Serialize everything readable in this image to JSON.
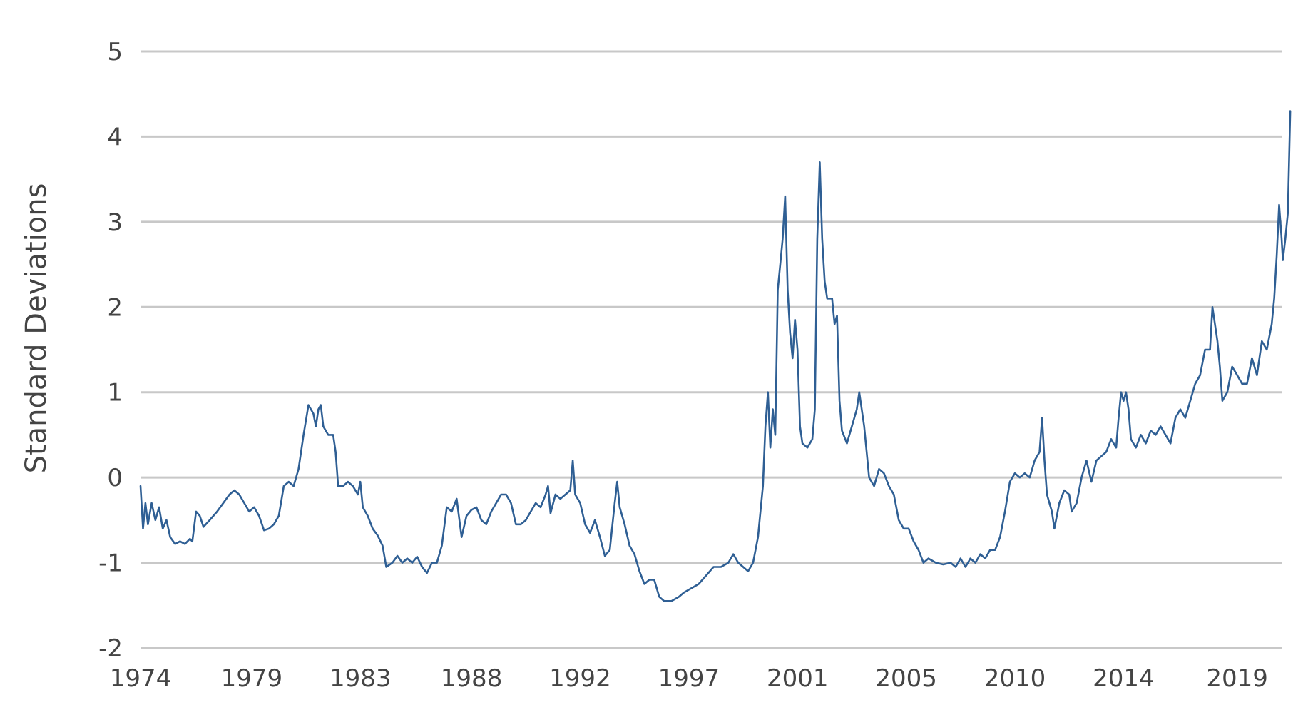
{
  "chart_data": {
    "type": "line",
    "title": "",
    "xlabel": "",
    "ylabel": "Standard Deviations",
    "ylim": [
      -2,
      5
    ],
    "xlim": [
      1974.0,
      2020.2
    ],
    "y_ticks": [
      5,
      4,
      3,
      2,
      1,
      0,
      -1,
      -2
    ],
    "x_ticks": [
      {
        "label": "1974",
        "x": 1974.0
      },
      {
        "label": "1979",
        "x": 1978.5
      },
      {
        "label": "1983",
        "x": 1982.9
      },
      {
        "label": "1988",
        "x": 1987.4
      },
      {
        "label": "1992",
        "x": 1991.8
      },
      {
        "label": "1997",
        "x": 1996.2
      },
      {
        "label": "2001",
        "x": 2000.6
      },
      {
        "label": "2005",
        "x": 2005.0
      },
      {
        "label": "2010",
        "x": 2009.4
      },
      {
        "label": "2014",
        "x": 2013.8
      },
      {
        "label": "2019",
        "x": 2018.4
      }
    ],
    "grid": true,
    "legend": "none",
    "colors": {
      "line": "#2f5f94",
      "grid": "#c8c8c8",
      "text": "#444444"
    },
    "series": [
      {
        "points": [
          [
            1974.0,
            -0.1
          ],
          [
            1974.1,
            -0.6
          ],
          [
            1974.2,
            -0.3
          ],
          [
            1974.3,
            -0.55
          ],
          [
            1974.45,
            -0.3
          ],
          [
            1974.6,
            -0.5
          ],
          [
            1974.75,
            -0.35
          ],
          [
            1974.9,
            -0.6
          ],
          [
            1975.05,
            -0.5
          ],
          [
            1975.2,
            -0.7
          ],
          [
            1975.4,
            -0.78
          ],
          [
            1975.6,
            -0.75
          ],
          [
            1975.8,
            -0.78
          ],
          [
            1976.0,
            -0.72
          ],
          [
            1976.1,
            -0.75
          ],
          [
            1976.25,
            -0.4
          ],
          [
            1976.4,
            -0.45
          ],
          [
            1976.55,
            -0.58
          ],
          [
            1976.8,
            -0.5
          ],
          [
            1977.1,
            -0.4
          ],
          [
            1977.4,
            -0.28
          ],
          [
            1977.6,
            -0.2
          ],
          [
            1977.8,
            -0.15
          ],
          [
            1978.0,
            -0.2
          ],
          [
            1978.2,
            -0.3
          ],
          [
            1978.4,
            -0.4
          ],
          [
            1978.6,
            -0.35
          ],
          [
            1978.8,
            -0.45
          ],
          [
            1979.0,
            -0.62
          ],
          [
            1979.2,
            -0.6
          ],
          [
            1979.4,
            -0.55
          ],
          [
            1979.6,
            -0.45
          ],
          [
            1979.8,
            -0.1
          ],
          [
            1980.0,
            -0.05
          ],
          [
            1980.2,
            -0.1
          ],
          [
            1980.4,
            0.1
          ],
          [
            1980.6,
            0.5
          ],
          [
            1980.8,
            0.85
          ],
          [
            1981.0,
            0.75
          ],
          [
            1981.1,
            0.6
          ],
          [
            1981.2,
            0.8
          ],
          [
            1981.3,
            0.85
          ],
          [
            1981.4,
            0.6
          ],
          [
            1981.6,
            0.5
          ],
          [
            1981.8,
            0.5
          ],
          [
            1981.9,
            0.3
          ],
          [
            1982.0,
            -0.1
          ],
          [
            1982.2,
            -0.1
          ],
          [
            1982.4,
            -0.05
          ],
          [
            1982.6,
            -0.1
          ],
          [
            1982.8,
            -0.2
          ],
          [
            1982.9,
            -0.05
          ],
          [
            1983.0,
            -0.35
          ],
          [
            1983.2,
            -0.45
          ],
          [
            1983.4,
            -0.6
          ],
          [
            1983.6,
            -0.68
          ],
          [
            1983.8,
            -0.8
          ],
          [
            1983.95,
            -1.05
          ],
          [
            1984.2,
            -1.0
          ],
          [
            1984.4,
            -0.92
          ],
          [
            1984.6,
            -1.0
          ],
          [
            1984.8,
            -0.95
          ],
          [
            1985.0,
            -1.0
          ],
          [
            1985.2,
            -0.93
          ],
          [
            1985.4,
            -1.05
          ],
          [
            1985.6,
            -1.12
          ],
          [
            1985.8,
            -1.0
          ],
          [
            1986.0,
            -1.0
          ],
          [
            1986.2,
            -0.8
          ],
          [
            1986.4,
            -0.35
          ],
          [
            1986.6,
            -0.4
          ],
          [
            1986.8,
            -0.25
          ],
          [
            1987.0,
            -0.7
          ],
          [
            1987.2,
            -0.45
          ],
          [
            1987.4,
            -0.38
          ],
          [
            1987.6,
            -0.35
          ],
          [
            1987.8,
            -0.5
          ],
          [
            1988.0,
            -0.55
          ],
          [
            1988.2,
            -0.4
          ],
          [
            1988.4,
            -0.3
          ],
          [
            1988.6,
            -0.2
          ],
          [
            1988.8,
            -0.2
          ],
          [
            1989.0,
            -0.3
          ],
          [
            1989.2,
            -0.55
          ],
          [
            1989.4,
            -0.55
          ],
          [
            1989.6,
            -0.5
          ],
          [
            1989.8,
            -0.4
          ],
          [
            1990.0,
            -0.3
          ],
          [
            1990.2,
            -0.35
          ],
          [
            1990.4,
            -0.2
          ],
          [
            1990.5,
            -0.1
          ],
          [
            1990.6,
            -0.42
          ],
          [
            1990.8,
            -0.2
          ],
          [
            1991.0,
            -0.25
          ],
          [
            1991.2,
            -0.2
          ],
          [
            1991.4,
            -0.15
          ],
          [
            1991.5,
            0.2
          ],
          [
            1991.6,
            -0.2
          ],
          [
            1991.8,
            -0.3
          ],
          [
            1992.0,
            -0.55
          ],
          [
            1992.2,
            -0.65
          ],
          [
            1992.4,
            -0.5
          ],
          [
            1992.6,
            -0.7
          ],
          [
            1992.8,
            -0.92
          ],
          [
            1993.0,
            -0.85
          ],
          [
            1993.2,
            -0.3
          ],
          [
            1993.3,
            -0.05
          ],
          [
            1993.4,
            -0.35
          ],
          [
            1993.6,
            -0.55
          ],
          [
            1993.8,
            -0.8
          ],
          [
            1994.0,
            -0.9
          ],
          [
            1994.2,
            -1.1
          ],
          [
            1994.4,
            -1.25
          ],
          [
            1994.6,
            -1.2
          ],
          [
            1994.8,
            -1.2
          ],
          [
            1995.0,
            -1.4
          ],
          [
            1995.2,
            -1.45
          ],
          [
            1995.5,
            -1.45
          ],
          [
            1995.8,
            -1.4
          ],
          [
            1996.0,
            -1.35
          ],
          [
            1996.3,
            -1.3
          ],
          [
            1996.6,
            -1.25
          ],
          [
            1996.9,
            -1.15
          ],
          [
            1997.2,
            -1.05
          ],
          [
            1997.5,
            -1.05
          ],
          [
            1997.8,
            -1.0
          ],
          [
            1998.0,
            -0.9
          ],
          [
            1998.2,
            -1.0
          ],
          [
            1998.4,
            -1.05
          ],
          [
            1998.6,
            -1.1
          ],
          [
            1998.8,
            -1.0
          ],
          [
            1999.0,
            -0.7
          ],
          [
            1999.2,
            -0.1
          ],
          [
            1999.3,
            0.6
          ],
          [
            1999.4,
            1.0
          ],
          [
            1999.5,
            0.35
          ],
          [
            1999.6,
            0.8
          ],
          [
            1999.7,
            0.5
          ],
          [
            1999.8,
            2.2
          ],
          [
            1999.9,
            2.5
          ],
          [
            2000.0,
            2.8
          ],
          [
            2000.1,
            3.3
          ],
          [
            2000.2,
            2.2
          ],
          [
            2000.3,
            1.7
          ],
          [
            2000.4,
            1.4
          ],
          [
            2000.5,
            1.85
          ],
          [
            2000.6,
            1.5
          ],
          [
            2000.7,
            0.6
          ],
          [
            2000.8,
            0.4
          ],
          [
            2001.0,
            0.35
          ],
          [
            2001.2,
            0.45
          ],
          [
            2001.3,
            0.8
          ],
          [
            2001.4,
            2.8
          ],
          [
            2001.5,
            3.7
          ],
          [
            2001.6,
            2.8
          ],
          [
            2001.7,
            2.3
          ],
          [
            2001.8,
            2.1
          ],
          [
            2002.0,
            2.1
          ],
          [
            2002.1,
            1.8
          ],
          [
            2002.2,
            1.9
          ],
          [
            2002.3,
            0.9
          ],
          [
            2002.4,
            0.55
          ],
          [
            2002.6,
            0.4
          ],
          [
            2002.8,
            0.6
          ],
          [
            2003.0,
            0.8
          ],
          [
            2003.1,
            1.0
          ],
          [
            2003.3,
            0.6
          ],
          [
            2003.5,
            0.0
          ],
          [
            2003.7,
            -0.1
          ],
          [
            2003.9,
            0.1
          ],
          [
            2004.1,
            0.05
          ],
          [
            2004.3,
            -0.1
          ],
          [
            2004.5,
            -0.2
          ],
          [
            2004.7,
            -0.5
          ],
          [
            2004.9,
            -0.6
          ],
          [
            2005.1,
            -0.6
          ],
          [
            2005.3,
            -0.75
          ],
          [
            2005.5,
            -0.85
          ],
          [
            2005.7,
            -1.0
          ],
          [
            2005.9,
            -0.95
          ],
          [
            2006.2,
            -1.0
          ],
          [
            2006.5,
            -1.02
          ],
          [
            2006.8,
            -1.0
          ],
          [
            2007.0,
            -1.05
          ],
          [
            2007.2,
            -0.95
          ],
          [
            2007.4,
            -1.05
          ],
          [
            2007.6,
            -0.95
          ],
          [
            2007.8,
            -1.0
          ],
          [
            2008.0,
            -0.9
          ],
          [
            2008.2,
            -0.95
          ],
          [
            2008.4,
            -0.85
          ],
          [
            2008.6,
            -0.85
          ],
          [
            2008.8,
            -0.7
          ],
          [
            2009.0,
            -0.4
          ],
          [
            2009.2,
            -0.05
          ],
          [
            2009.4,
            0.05
          ],
          [
            2009.6,
            0.0
          ],
          [
            2009.8,
            0.05
          ],
          [
            2010.0,
            0.0
          ],
          [
            2010.2,
            0.2
          ],
          [
            2010.4,
            0.3
          ],
          [
            2010.5,
            0.7
          ],
          [
            2010.6,
            0.2
          ],
          [
            2010.7,
            -0.2
          ],
          [
            2010.9,
            -0.4
          ],
          [
            2011.0,
            -0.6
          ],
          [
            2011.2,
            -0.3
          ],
          [
            2011.4,
            -0.15
          ],
          [
            2011.6,
            -0.2
          ],
          [
            2011.7,
            -0.4
          ],
          [
            2011.9,
            -0.3
          ],
          [
            2012.1,
            0.0
          ],
          [
            2012.3,
            0.2
          ],
          [
            2012.5,
            -0.05
          ],
          [
            2012.7,
            0.2
          ],
          [
            2012.9,
            0.25
          ],
          [
            2013.1,
            0.3
          ],
          [
            2013.3,
            0.45
          ],
          [
            2013.5,
            0.35
          ],
          [
            2013.6,
            0.7
          ],
          [
            2013.7,
            1.0
          ],
          [
            2013.8,
            0.9
          ],
          [
            2013.9,
            1.0
          ],
          [
            2014.0,
            0.8
          ],
          [
            2014.1,
            0.45
          ],
          [
            2014.3,
            0.35
          ],
          [
            2014.5,
            0.5
          ],
          [
            2014.7,
            0.4
          ],
          [
            2014.9,
            0.55
          ],
          [
            2015.1,
            0.5
          ],
          [
            2015.3,
            0.6
          ],
          [
            2015.5,
            0.5
          ],
          [
            2015.7,
            0.4
          ],
          [
            2015.9,
            0.7
          ],
          [
            2016.1,
            0.8
          ],
          [
            2016.3,
            0.7
          ],
          [
            2016.5,
            0.9
          ],
          [
            2016.7,
            1.1
          ],
          [
            2016.9,
            1.2
          ],
          [
            2017.1,
            1.5
          ],
          [
            2017.3,
            1.5
          ],
          [
            2017.4,
            2.0
          ],
          [
            2017.6,
            1.6
          ],
          [
            2017.7,
            1.3
          ],
          [
            2017.8,
            0.9
          ],
          [
            2018.0,
            1.0
          ],
          [
            2018.2,
            1.3
          ],
          [
            2018.4,
            1.2
          ],
          [
            2018.6,
            1.1
          ],
          [
            2018.8,
            1.1
          ],
          [
            2019.0,
            1.4
          ],
          [
            2019.2,
            1.2
          ],
          [
            2019.4,
            1.6
          ],
          [
            2019.6,
            1.5
          ],
          [
            2019.8,
            1.8
          ],
          [
            2019.9,
            2.1
          ],
          [
            2020.0,
            2.6
          ],
          [
            2020.1,
            3.2
          ],
          [
            2020.2,
            2.8
          ],
          [
            2020.25,
            2.55
          ],
          [
            2020.35,
            2.8
          ],
          [
            2020.45,
            3.1
          ],
          [
            2020.55,
            4.3
          ]
        ]
      }
    ]
  }
}
